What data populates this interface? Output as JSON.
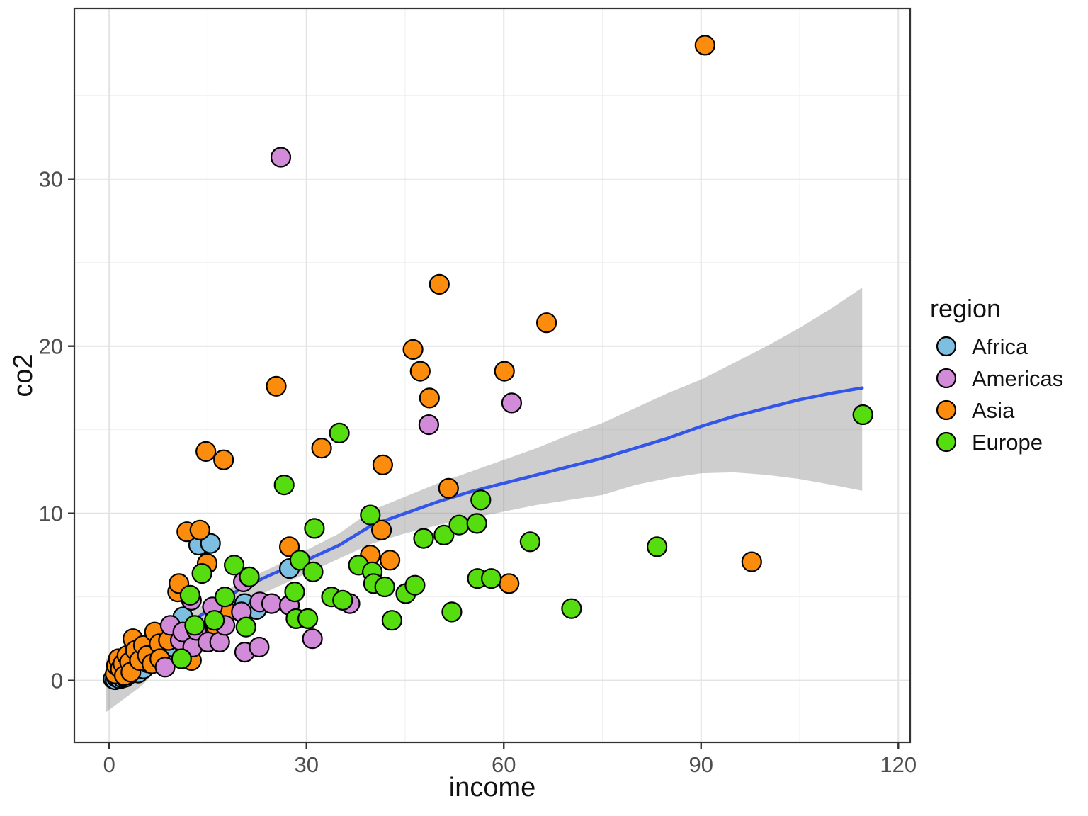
{
  "figure": {
    "background": "#FFFFFF",
    "legend_title": "region"
  },
  "style": {
    "panel_border": "#333333",
    "grid_major": "#E3E3E3",
    "grid_minor": "#F1F1F1",
    "tick_color": "#333333",
    "tick_text": "#4d4d4d",
    "point_stroke": "#000000",
    "smooth_line": "#3355E8",
    "band_fill": "rgba(125,125,125,0.38)"
  },
  "chart_data": {
    "type": "scatter",
    "title": "",
    "xlabel": "income",
    "ylabel": "co2",
    "xlim": [
      -5.3,
      121.8
    ],
    "ylim": [
      -3.7,
      40.2
    ],
    "x_ticks": [
      0,
      30,
      60,
      90,
      120
    ],
    "x_minor_ticks": [
      15,
      45,
      75,
      105
    ],
    "y_ticks": [
      0,
      10,
      20,
      30
    ],
    "y_minor_ticks": [
      5,
      15,
      25,
      35
    ],
    "grid": true,
    "legend_position": "right",
    "legend_title": "region",
    "series": [
      {
        "name": "Africa",
        "color": "#7CBFE0",
        "points": [
          [
            0.6,
            0.1
          ],
          [
            0.9,
            0.05
          ],
          [
            1.1,
            0.2
          ],
          [
            1.4,
            0.3
          ],
          [
            1.6,
            0.1
          ],
          [
            2.0,
            0.15
          ],
          [
            2.4,
            0.2
          ],
          [
            2.9,
            0.35
          ],
          [
            3.4,
            0.5
          ],
          [
            3.8,
            0.85
          ],
          [
            4.4,
            0.45
          ],
          [
            5.2,
            0.7
          ],
          [
            6.0,
            1.05
          ],
          [
            7.2,
            1.3
          ],
          [
            9.3,
            1.7
          ],
          [
            10.0,
            1.95
          ],
          [
            10.1,
            2.8
          ],
          [
            11.2,
            3.8
          ],
          [
            13.6,
            8.1
          ],
          [
            15.4,
            8.2
          ],
          [
            20.6,
            4.6
          ],
          [
            22.4,
            4.25
          ],
          [
            27.4,
            6.7
          ]
        ]
      },
      {
        "name": "Americas",
        "color": "#D28BD8",
        "points": [
          [
            8.5,
            0.8
          ],
          [
            9.3,
            3.3
          ],
          [
            10.8,
            2.4
          ],
          [
            11.2,
            2.9
          ],
          [
            12.5,
            4.8
          ],
          [
            12.7,
            2.0
          ],
          [
            13.3,
            3.0
          ],
          [
            15.0,
            2.3
          ],
          [
            15.7,
            4.4
          ],
          [
            16.8,
            2.3
          ],
          [
            17.6,
            3.3
          ],
          [
            20.1,
            4.1
          ],
          [
            20.4,
            5.9
          ],
          [
            20.6,
            1.7
          ],
          [
            22.8,
            2.0
          ],
          [
            22.9,
            4.7
          ],
          [
            24.7,
            4.6
          ],
          [
            26.1,
            31.3
          ],
          [
            27.4,
            4.5
          ],
          [
            30.9,
            2.5
          ],
          [
            36.6,
            4.6
          ],
          [
            48.6,
            15.3
          ],
          [
            61.2,
            16.6
          ]
        ]
      },
      {
        "name": "Asia",
        "color": "#FB8C0D",
        "points": [
          [
            0.9,
            0.4
          ],
          [
            1.1,
            0.9
          ],
          [
            1.4,
            1.3
          ],
          [
            1.7,
            0.7
          ],
          [
            2.1,
            1.0
          ],
          [
            2.3,
            0.3
          ],
          [
            2.7,
            1.5
          ],
          [
            3.1,
            1.1
          ],
          [
            3.3,
            0.5
          ],
          [
            3.6,
            2.5
          ],
          [
            4.0,
            1.8
          ],
          [
            4.6,
            1.2
          ],
          [
            5.2,
            2.1
          ],
          [
            5.8,
            1.5
          ],
          [
            6.5,
            1.0
          ],
          [
            6.9,
            2.9
          ],
          [
            7.6,
            2.2
          ],
          [
            7.7,
            1.3
          ],
          [
            9.0,
            2.4
          ],
          [
            10.4,
            5.3
          ],
          [
            10.6,
            5.8
          ],
          [
            12.5,
            1.2
          ],
          [
            11.8,
            8.9
          ],
          [
            13.8,
            9.0
          ],
          [
            14.9,
            7.0
          ],
          [
            16.3,
            3.2
          ],
          [
            17.9,
            4.1
          ],
          [
            14.7,
            13.7
          ],
          [
            17.4,
            13.2
          ],
          [
            25.4,
            17.6
          ],
          [
            27.4,
            8.0
          ],
          [
            32.3,
            13.9
          ],
          [
            39.7,
            7.5
          ],
          [
            41.4,
            9.0
          ],
          [
            41.6,
            12.9
          ],
          [
            42.7,
            7.2
          ],
          [
            46.2,
            19.8
          ],
          [
            47.3,
            18.5
          ],
          [
            48.7,
            16.9
          ],
          [
            50.2,
            23.7
          ],
          [
            51.6,
            11.5
          ],
          [
            60.1,
            18.5
          ],
          [
            60.8,
            5.8
          ],
          [
            66.5,
            21.4
          ],
          [
            90.6,
            38.0
          ],
          [
            97.7,
            7.1
          ]
        ]
      },
      {
        "name": "Europe",
        "color": "#55DD0F",
        "points": [
          [
            11.0,
            1.3
          ],
          [
            12.3,
            5.1
          ],
          [
            13.0,
            3.3
          ],
          [
            14.1,
            6.4
          ],
          [
            16.0,
            3.6
          ],
          [
            17.6,
            5.0
          ],
          [
            19.0,
            6.9
          ],
          [
            20.8,
            3.2
          ],
          [
            21.3,
            6.2
          ],
          [
            26.6,
            11.7
          ],
          [
            28.2,
            5.3
          ],
          [
            28.4,
            3.7
          ],
          [
            29.0,
            7.2
          ],
          [
            30.2,
            3.7
          ],
          [
            31.0,
            6.5
          ],
          [
            31.2,
            9.1
          ],
          [
            33.8,
            5.0
          ],
          [
            35.0,
            14.8
          ],
          [
            35.5,
            4.8
          ],
          [
            37.9,
            6.9
          ],
          [
            39.7,
            9.9
          ],
          [
            40.0,
            6.5
          ],
          [
            40.2,
            5.8
          ],
          [
            41.9,
            5.6
          ],
          [
            43.0,
            3.6
          ],
          [
            45.1,
            5.2
          ],
          [
            46.5,
            5.7
          ],
          [
            47.8,
            8.5
          ],
          [
            50.9,
            8.7
          ],
          [
            52.1,
            4.1
          ],
          [
            53.2,
            9.3
          ],
          [
            55.9,
            9.4
          ],
          [
            56.0,
            6.1
          ],
          [
            56.5,
            10.8
          ],
          [
            58.1,
            6.1
          ],
          [
            64.0,
            8.3
          ],
          [
            70.3,
            4.3
          ],
          [
            83.3,
            8.0
          ],
          [
            114.6,
            15.9
          ]
        ]
      }
    ],
    "smoother": {
      "x": [
        -0.5,
        5,
        10,
        15,
        20,
        25,
        30,
        35,
        40,
        45,
        50,
        55,
        60,
        65,
        70,
        75,
        80,
        85,
        90,
        95,
        100,
        105,
        110,
        114.5
      ],
      "y": [
        0.1,
        1.5,
        2.8,
        4.2,
        5.5,
        6.4,
        7.2,
        8.1,
        9.3,
        10.0,
        10.7,
        11.3,
        11.8,
        12.3,
        12.8,
        13.3,
        13.9,
        14.5,
        15.2,
        15.8,
        16.3,
        16.8,
        17.2,
        17.5
      ],
      "upper": [
        1.3,
        2.3,
        3.4,
        4.7,
        5.9,
        6.8,
        7.8,
        8.8,
        10.2,
        11.0,
        11.8,
        12.5,
        13.2,
        13.9,
        14.7,
        15.4,
        16.3,
        17.2,
        18.0,
        19.0,
        20.0,
        21.1,
        22.3,
        23.5
      ],
      "lower": [
        -1.9,
        -0.3,
        1.8,
        3.2,
        4.6,
        5.5,
        6.4,
        7.3,
        8.2,
        8.8,
        9.3,
        9.7,
        10.1,
        10.5,
        10.8,
        11.1,
        11.7,
        12.1,
        12.4,
        12.45,
        12.3,
        12.05,
        11.7,
        11.35
      ]
    }
  }
}
